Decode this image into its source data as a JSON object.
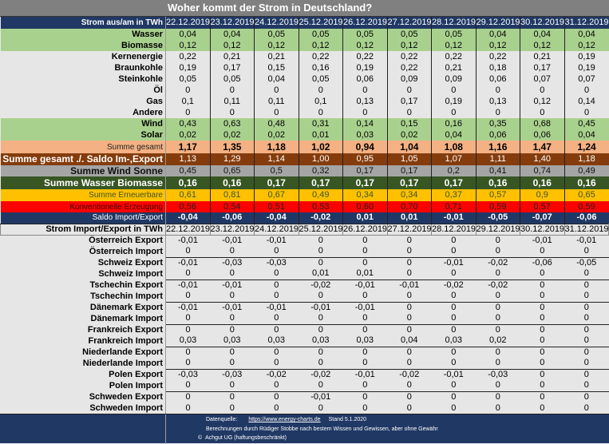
{
  "title": "Woher kommt der Strom in Deutschland?",
  "header_label": "Strom aus/am in TWh",
  "import_header_label": "Strom Import/Export in TWh",
  "dates": [
    "22.12.2019",
    "23.12.2019",
    "24.12.2019",
    "25.12.2019",
    "26.12.2019",
    "27.12.2019",
    "28.12.2019",
    "29.12.2019",
    "30.12.2019",
    "31.12.2019"
  ],
  "generation": [
    {
      "label": "Wasser",
      "style": "green",
      "values": [
        "0,04",
        "0,04",
        "0,05",
        "0,05",
        "0,05",
        "0,05",
        "0,05",
        "0,04",
        "0,04",
        "0,04"
      ]
    },
    {
      "label": "Biomasse",
      "style": "green",
      "values": [
        "0,12",
        "0,12",
        "0,12",
        "0,12",
        "0,12",
        "0,12",
        "0,12",
        "0,12",
        "0,12",
        "0,12"
      ]
    },
    {
      "label": "Kernenergie",
      "style": "grey",
      "values": [
        "0,22",
        "0,21",
        "0,21",
        "0,22",
        "0,22",
        "0,22",
        "0,22",
        "0,22",
        "0,21",
        "0,19"
      ]
    },
    {
      "label": "Braunkohle",
      "style": "grey",
      "values": [
        "0,19",
        "0,17",
        "0,15",
        "0,16",
        "0,19",
        "0,22",
        "0,21",
        "0,18",
        "0,17",
        "0,19"
      ]
    },
    {
      "label": "Steinkohle",
      "style": "grey",
      "values": [
        "0,05",
        "0,05",
        "0,04",
        "0,05",
        "0,06",
        "0,09",
        "0,09",
        "0,06",
        "0,07",
        "0,07"
      ]
    },
    {
      "label": "Öl",
      "style": "grey",
      "values": [
        "0",
        "0",
        "0",
        "0",
        "0",
        "0",
        "0",
        "0",
        "0",
        "0"
      ]
    },
    {
      "label": "Gas",
      "style": "grey",
      "values": [
        "0,1",
        "0,11",
        "0,11",
        "0,1",
        "0,13",
        "0,17",
        "0,19",
        "0,13",
        "0,12",
        "0,14"
      ]
    },
    {
      "label": "Andere",
      "style": "grey",
      "values": [
        "0",
        "0",
        "0",
        "0",
        "0",
        "0",
        "0",
        "0",
        "0",
        "0"
      ]
    },
    {
      "label": "Wind",
      "style": "green",
      "values": [
        "0,43",
        "0,63",
        "0,48",
        "0,31",
        "0,14",
        "0,15",
        "0,16",
        "0,35",
        "0,68",
        "0,45"
      ]
    },
    {
      "label": "Solar",
      "style": "green",
      "values": [
        "0,02",
        "0,02",
        "0,02",
        "0,01",
        "0,03",
        "0,02",
        "0,04",
        "0,06",
        "0,06",
        "0,04"
      ]
    },
    {
      "label": "Summe gesamt",
      "style": "sum",
      "values": [
        "1,17",
        "1,35",
        "1,18",
        "1,02",
        "0,94",
        "1,04",
        "1,08",
        "1,16",
        "1,47",
        "1,24"
      ]
    },
    {
      "label": "Summe gesamt ./. Saldo Im-,Export",
      "style": "brown",
      "values": [
        "1,13",
        "1,29",
        "1,14",
        "1,00",
        "0,95",
        "1,05",
        "1,07",
        "1,11",
        "1,40",
        "1,18"
      ]
    },
    {
      "label": "Summe Wind Sonne",
      "style": "ws",
      "values": [
        "0,45",
        "0,65",
        "0,5",
        "0,32",
        "0,17",
        "0,17",
        "0,2",
        "0,41",
        "0,74",
        "0,49"
      ]
    },
    {
      "label": "Summe Wasser Biomasse",
      "style": "wb",
      "values": [
        "0,16",
        "0,16",
        "0,17",
        "0,17",
        "0,17",
        "0,17",
        "0,17",
        "0,16",
        "0,16",
        "0,16"
      ]
    },
    {
      "label": "Summe Erneuerbare",
      "style": "ern",
      "values": [
        "0,61",
        "0,81",
        "0,67",
        "0,49",
        "0,34",
        "0,34",
        "0,37",
        "0,57",
        "0,9",
        "0,65"
      ]
    },
    {
      "label": "Konventionelle Erzeugung",
      "style": "konv",
      "values": [
        "0,56",
        "0,54",
        "0,51",
        "0,53",
        "0,60",
        "0,70",
        "0,71",
        "0,59",
        "0,57",
        "0,59"
      ]
    },
    {
      "label": "Saldo Import/Export",
      "style": "saldo",
      "values": [
        "-0,04",
        "-0,06",
        "-0,04",
        "-0,02",
        "0,01",
        "0,01",
        "-0,01",
        "-0,05",
        "-0,07",
        "-0,06"
      ]
    }
  ],
  "trade": [
    {
      "label": "Österreich Export",
      "values": [
        "-0,01",
        "-0,01",
        "-0,01",
        "0",
        "0",
        "0",
        "0",
        "0",
        "-0,01",
        "-0,01"
      ]
    },
    {
      "label": "Österreich Import",
      "values": [
        "0",
        "0",
        "0",
        "0",
        "0",
        "0",
        "0",
        "0",
        "0",
        "0"
      ]
    },
    {
      "label": "Schweiz Export",
      "values": [
        "-0,01",
        "-0,03",
        "-0,03",
        "0",
        "0",
        "0",
        "-0,01",
        "-0,02",
        "-0,06",
        "-0,05"
      ]
    },
    {
      "label": "Schweiz Import",
      "values": [
        "0",
        "0",
        "0",
        "0,01",
        "0,01",
        "0",
        "0",
        "0",
        "0",
        "0"
      ]
    },
    {
      "label": "Tschechin Export",
      "values": [
        "-0,01",
        "-0,01",
        "0",
        "-0,02",
        "-0,01",
        "-0,01",
        "-0,02",
        "-0,02",
        "0",
        "0"
      ]
    },
    {
      "label": "Tschechin Import",
      "values": [
        "0",
        "0",
        "0",
        "0",
        "0",
        "0",
        "0",
        "0",
        "0",
        "0"
      ]
    },
    {
      "label": "Dänemark Export",
      "values": [
        "-0,01",
        "-0,01",
        "-0,01",
        "-0,01",
        "-0,01",
        "0",
        "0",
        "0",
        "0",
        "0"
      ]
    },
    {
      "label": "Dänemark Import",
      "values": [
        "0",
        "0",
        "0",
        "0",
        "0",
        "0",
        "0",
        "0",
        "0",
        "0"
      ]
    },
    {
      "label": "Frankreich Export",
      "values": [
        "0",
        "0",
        "0",
        "0",
        "0",
        "0",
        "0",
        "0",
        "0",
        "0"
      ]
    },
    {
      "label": "Frankreich Import",
      "values": [
        "0,03",
        "0,03",
        "0,03",
        "0,03",
        "0,03",
        "0,04",
        "0,03",
        "0,02",
        "0",
        "0"
      ]
    },
    {
      "label": "Niederlande Export",
      "values": [
        "0",
        "0",
        "0",
        "0",
        "0",
        "0",
        "0",
        "0",
        "0",
        "0"
      ]
    },
    {
      "label": "Niederlande Import",
      "values": [
        "0",
        "0",
        "0",
        "0",
        "0",
        "0",
        "0",
        "0",
        "0",
        "0"
      ]
    },
    {
      "label": "Polen  Export",
      "values": [
        "-0,03",
        "-0,03",
        "-0,02",
        "-0,02",
        "-0,01",
        "-0,02",
        "-0,01",
        "-0,03",
        "0",
        "0"
      ]
    },
    {
      "label": "Polen Import",
      "values": [
        "0",
        "0",
        "0",
        "0",
        "0",
        "0",
        "0",
        "0",
        "0",
        "0"
      ]
    },
    {
      "label": "Schweden Export",
      "values": [
        "0",
        "0",
        "0",
        "-0,01",
        "0",
        "0",
        "0",
        "0",
        "0",
        "0"
      ]
    },
    {
      "label": "Schweden Import",
      "values": [
        "0",
        "0",
        "0",
        "0",
        "0",
        "0",
        "0",
        "0",
        "0",
        "0"
      ]
    }
  ],
  "footer": {
    "source_label": "Datenquelle:",
    "source_link": "https://www.energy-charts.de",
    "stand": "Stand 5.1.2020",
    "note": "Berechnungen durch Rüdiger Stobbe nach bestem Wissen und Gewissen, aber ohne Gewähr",
    "copyright_symbol": "©",
    "company": "Achgut UG (haftungsbeschränkt)"
  }
}
